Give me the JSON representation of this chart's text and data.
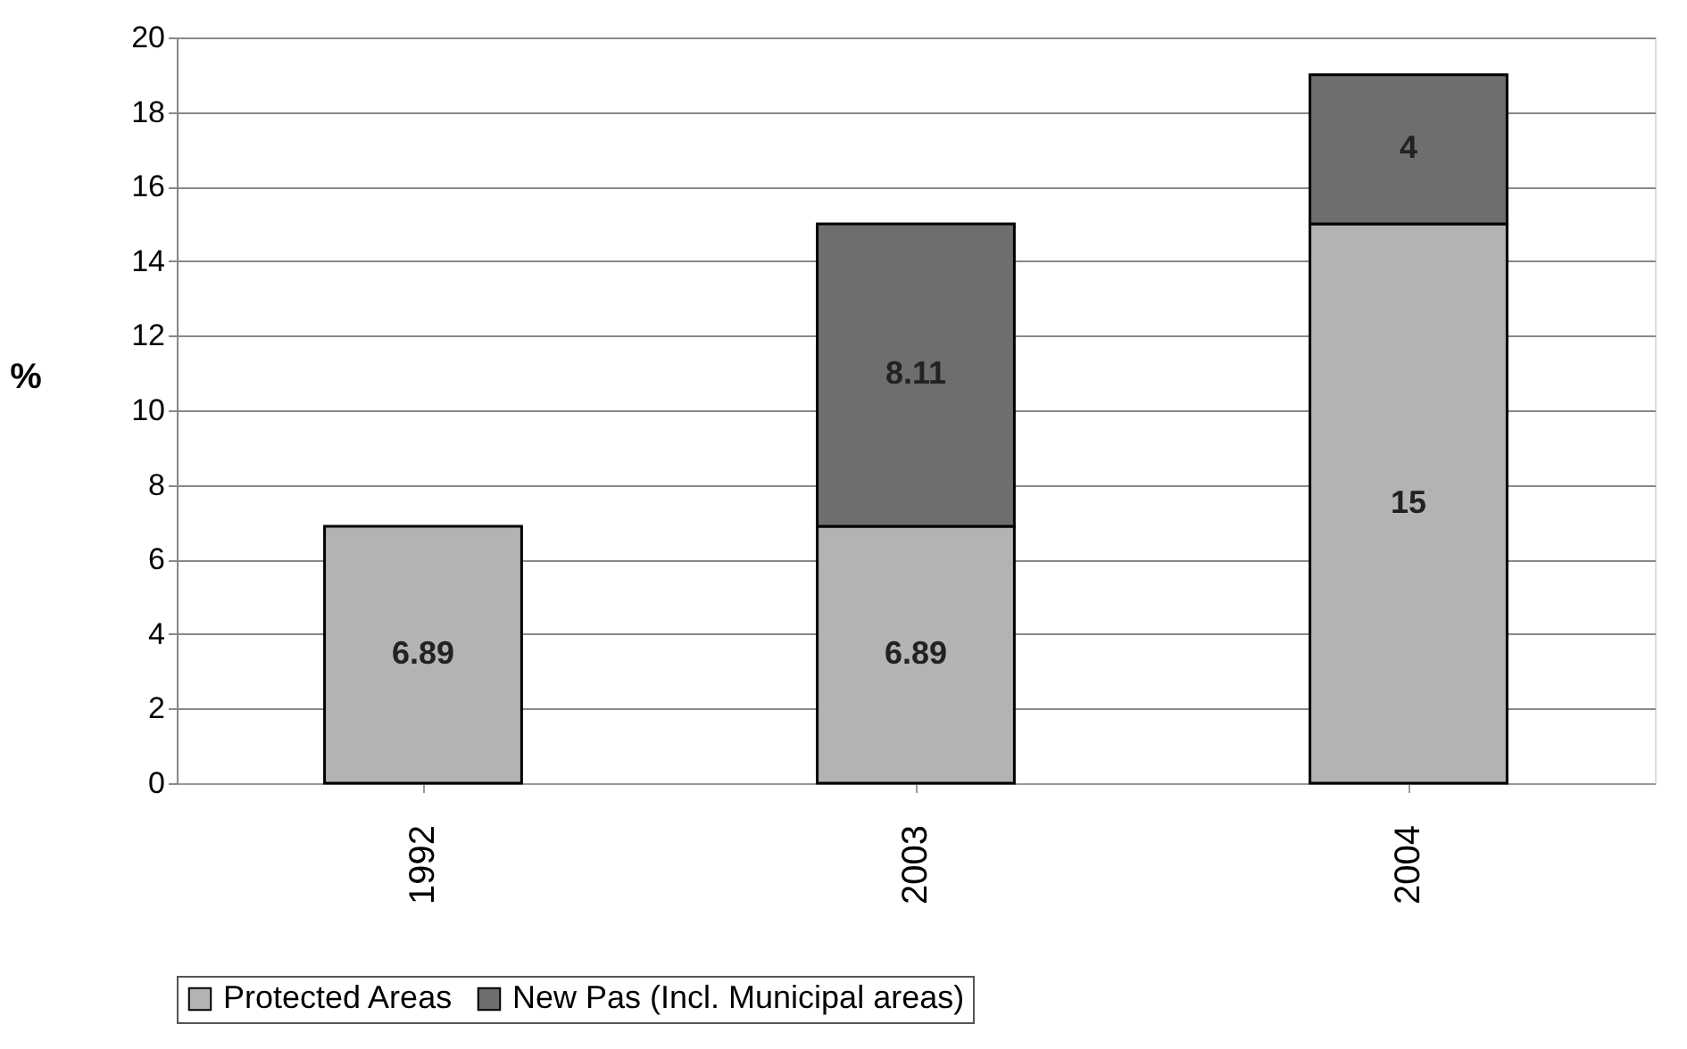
{
  "chart_data": {
    "type": "bar",
    "stacked": true,
    "ylabel": "%",
    "categories": [
      "1992",
      "2003",
      "2004"
    ],
    "series": [
      {
        "name": "Protected Areas",
        "color": "#b3b3b3",
        "values": [
          6.89,
          6.89,
          15
        ]
      },
      {
        "name": "New Pas (Incl. Municipal areas)",
        "color": "#6e6e6e",
        "values": [
          null,
          8.11,
          4
        ]
      }
    ],
    "ylim": [
      0,
      20
    ],
    "yticks": [
      0,
      2,
      4,
      6,
      8,
      10,
      12,
      14,
      16,
      18,
      20
    ],
    "grid": "y",
    "legend": "bottom",
    "data_labels": true
  }
}
